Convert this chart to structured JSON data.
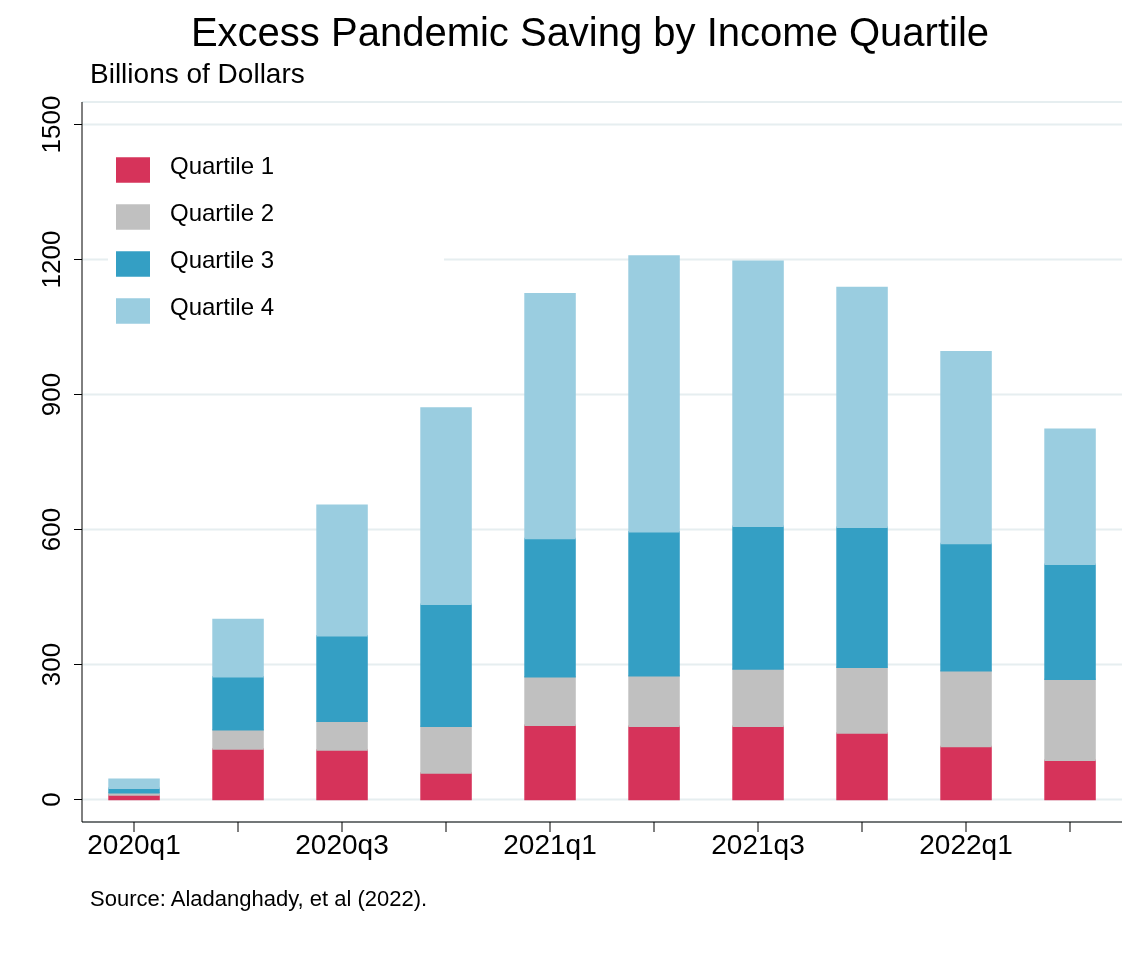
{
  "chart_data": {
    "type": "bar",
    "title": "Excess Pandemic Saving by Income Quartile",
    "subtitle": "Billions of Dollars",
    "annotations": [
      "Source: Aladanghady, et al (2022)."
    ],
    "categories": [
      "2020q1",
      null,
      "2020q3",
      null,
      "2021q1",
      null,
      "2021q3",
      null,
      "2022q1",
      null
    ],
    "stacked": true,
    "series": [
      {
        "name": "Quartile 1",
        "color": "#d6335a",
        "values": [
          10,
          112,
          110,
          59,
          165,
          163,
          163,
          148,
          118,
          87
        ]
      },
      {
        "name": "Quartile 2",
        "color": "#c0c0c0",
        "values": [
          5,
          43,
          64,
          104,
          108,
          112,
          127,
          146,
          168,
          180
        ]
      },
      {
        "name": "Quartile 3",
        "color": "#349fc4",
        "values": [
          10,
          118,
          190,
          271,
          307,
          320,
          317,
          311,
          283,
          256
        ]
      },
      {
        "name": "Quartile 4",
        "color": "#9acde0",
        "values": [
          20,
          127,
          290,
          436,
          544,
          613,
          589,
          533,
          426,
          300
        ]
      }
    ],
    "ylim": [
      -50,
      1550
    ],
    "yticks": [
      0,
      300,
      600,
      900,
      1200,
      1500
    ],
    "grid": "y",
    "legend": "top left"
  }
}
